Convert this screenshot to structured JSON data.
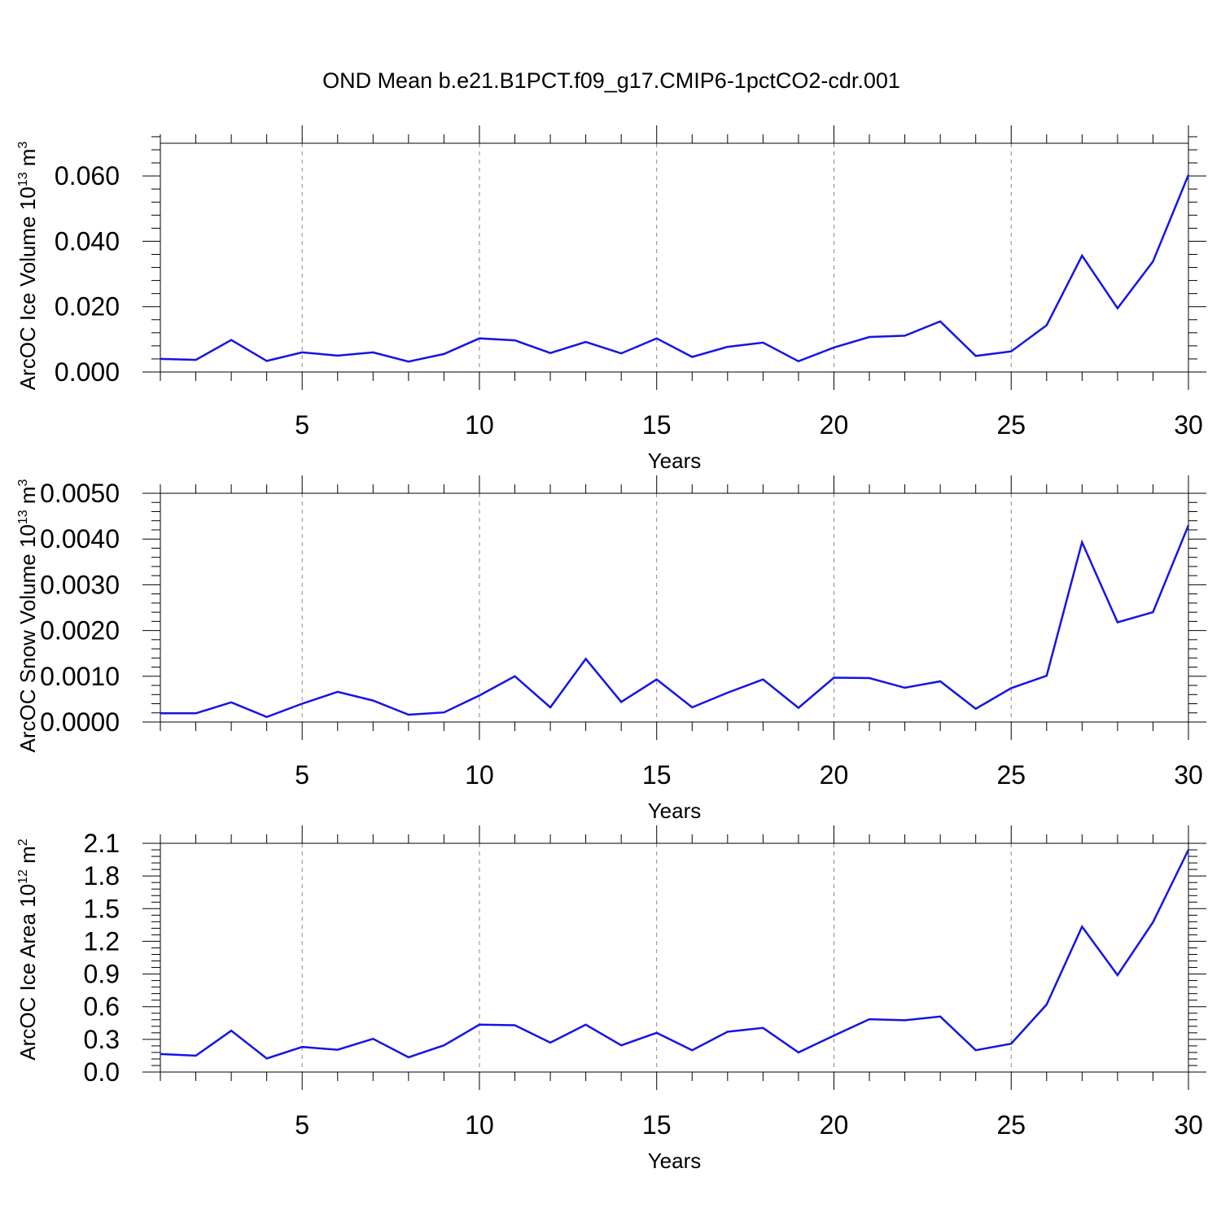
{
  "title": "OND Mean b.e21.B1PCT.f09_g17.CMIP6-1pctCO2-cdr.001",
  "colors": {
    "line": "#1414e6",
    "grid": "#888888",
    "axis": "#000000"
  },
  "chart_data": [
    {
      "type": "line",
      "xlabel": "Years",
      "ylabel_main": "ArcOC Ice Volume 10",
      "ylabel_exp": "13",
      "ylabel_unit": " m",
      "ylabel_unit_exp": "3",
      "xlim": [
        1,
        30
      ],
      "ylim": [
        0,
        0.07
      ],
      "xticks": [
        5,
        10,
        15,
        20,
        25,
        30
      ],
      "xtick_labels": [
        "5",
        "10",
        "15",
        "20",
        "25",
        "30"
      ],
      "yticks": [
        0,
        0.02,
        0.04,
        0.06
      ],
      "ytick_labels": [
        "0.000",
        "0.020",
        "0.040",
        "0.060"
      ],
      "x": [
        1,
        2,
        3,
        4,
        5,
        6,
        7,
        8,
        9,
        10,
        11,
        12,
        13,
        14,
        15,
        16,
        17,
        18,
        19,
        20,
        21,
        22,
        23,
        24,
        25,
        26,
        27,
        28,
        29,
        30
      ],
      "series": [
        {
          "name": "ice_volume",
          "values": [
            0.004,
            0.0037,
            0.0098,
            0.0034,
            0.006,
            0.005,
            0.006,
            0.0032,
            0.0055,
            0.0103,
            0.0097,
            0.0058,
            0.0092,
            0.0057,
            0.0103,
            0.0046,
            0.0077,
            0.009,
            0.0033,
            0.0075,
            0.0107,
            0.0111,
            0.0155,
            0.0049,
            0.0063,
            0.0143,
            0.0356,
            0.0195,
            0.0338,
            0.0603
          ]
        }
      ]
    },
    {
      "type": "line",
      "xlabel": "Years",
      "ylabel_main": "ArcOC Snow Volume 10",
      "ylabel_exp": "13",
      "ylabel_unit": " m",
      "ylabel_unit_exp": "3",
      "xlim": [
        1,
        30
      ],
      "ylim": [
        0,
        0.005
      ],
      "xticks": [
        5,
        10,
        15,
        20,
        25,
        30
      ],
      "xtick_labels": [
        "5",
        "10",
        "15",
        "20",
        "25",
        "30"
      ],
      "yticks": [
        0,
        0.001,
        0.002,
        0.003,
        0.004,
        0.005
      ],
      "ytick_labels": [
        "0.0000",
        "0.0010",
        "0.0020",
        "0.0030",
        "0.0040",
        "0.0050"
      ],
      "x": [
        1,
        2,
        3,
        4,
        5,
        6,
        7,
        8,
        9,
        10,
        11,
        12,
        13,
        14,
        15,
        16,
        17,
        18,
        19,
        20,
        21,
        22,
        23,
        24,
        25,
        26,
        27,
        28,
        29,
        30
      ],
      "series": [
        {
          "name": "snow_volume",
          "values": [
            0.00019,
            0.00019,
            0.00043,
            0.00011,
            0.0004,
            0.00066,
            0.00047,
            0.00016,
            0.00021,
            0.00058,
            0.001,
            0.00032,
            0.00138,
            0.00044,
            0.00093,
            0.00032,
            0.00064,
            0.00093,
            0.00031,
            0.00097,
            0.00096,
            0.00075,
            0.00089,
            0.00029,
            0.00074,
            0.00101,
            0.00393,
            0.00218,
            0.0024,
            0.0043
          ]
        }
      ]
    },
    {
      "type": "line",
      "xlabel": "Years",
      "ylabel_main": "ArcOC Ice Area 10",
      "ylabel_exp": "12",
      "ylabel_unit": " m",
      "ylabel_unit_exp": "2",
      "xlim": [
        1,
        30
      ],
      "ylim": [
        0,
        2.1
      ],
      "xticks": [
        5,
        10,
        15,
        20,
        25,
        30
      ],
      "xtick_labels": [
        "5",
        "10",
        "15",
        "20",
        "25",
        "30"
      ],
      "yticks": [
        0,
        0.3,
        0.6,
        0.9,
        1.2,
        1.5,
        1.8,
        2.1
      ],
      "ytick_labels": [
        "0.0",
        "0.3",
        "0.6",
        "0.9",
        "1.2",
        "1.5",
        "1.8",
        "2.1"
      ],
      "x": [
        1,
        2,
        3,
        4,
        5,
        6,
        7,
        8,
        9,
        10,
        11,
        12,
        13,
        14,
        15,
        16,
        17,
        18,
        19,
        20,
        21,
        22,
        23,
        24,
        25,
        26,
        27,
        28,
        29,
        30
      ],
      "series": [
        {
          "name": "ice_area",
          "values": [
            0.165,
            0.15,
            0.38,
            0.125,
            0.23,
            0.205,
            0.305,
            0.135,
            0.245,
            0.435,
            0.43,
            0.27,
            0.435,
            0.245,
            0.36,
            0.2,
            0.37,
            0.405,
            0.18,
            0.335,
            0.485,
            0.475,
            0.51,
            0.2,
            0.26,
            0.62,
            1.335,
            0.89,
            1.375,
            2.04
          ]
        }
      ]
    }
  ]
}
